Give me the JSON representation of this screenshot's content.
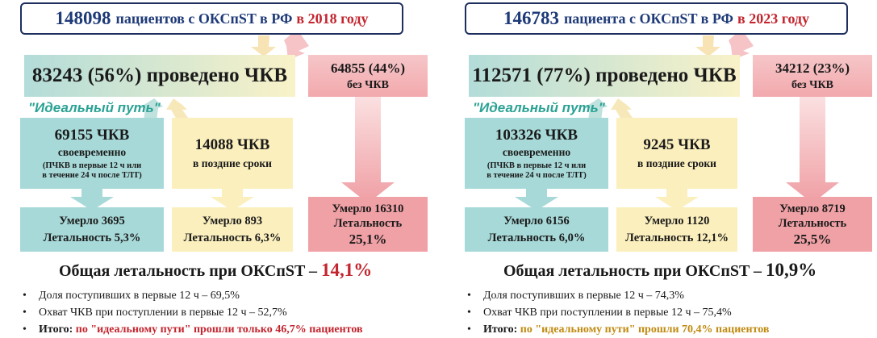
{
  "panels": [
    {
      "title": {
        "count": "148098",
        "text": "пациентов с ОКСпST в РФ",
        "year": "в 2018 году"
      },
      "pci_total": "83243 (56%) проведено ЧКВ",
      "no_pci": {
        "value": "64855 (44%)",
        "label": "без ЧКВ"
      },
      "ideal_label": "\"Идеальный путь\"",
      "timely": {
        "value": "69155 ЧКВ",
        "label": "своевременно",
        "note1": "(ПЧКВ в первые 12 ч или",
        "note2": "в течение 24 ч после ТЛТ)"
      },
      "late": {
        "value": "14088 ЧКВ",
        "label": "в поздние сроки"
      },
      "died_timely": {
        "deaths": "Умерло 3695",
        "lethality": "Летальность 5,3%"
      },
      "died_late": {
        "deaths": "Умерло 893",
        "lethality": "Летальность 6,3%"
      },
      "died_no_pci": {
        "deaths": "Умерло 16310",
        "label": "Летальность",
        "pct": "25,1%"
      },
      "overall": {
        "label": "Общая летальность при ОКСпST –",
        "value": "14,1%"
      },
      "notes": [
        "Доля поступивших в первые 12 ч – 69,5%",
        "Охват ЧКВ при поступлении в первые 12 ч – 52,7%"
      ],
      "total": {
        "prefix": "Итого:",
        "text": "по \"идеальному пути\" прошли только 46,7% пациентов"
      }
    },
    {
      "title": {
        "count": "146783",
        "text": "пациента с ОКСпST в РФ",
        "year": "в 2023 году"
      },
      "pci_total": "112571 (77%) проведено ЧКВ",
      "no_pci": {
        "value": "34212 (23%)",
        "label": "без ЧКВ"
      },
      "ideal_label": "\"Идеальный путь\"",
      "timely": {
        "value": "103326 ЧКВ",
        "label": "своевременно",
        "note1": "(ПЧКВ в первые 12 ч или",
        "note2": "в течение 24 ч после ТЛТ)"
      },
      "late": {
        "value": "9245 ЧКВ",
        "label": "в поздние сроки"
      },
      "died_timely": {
        "deaths": "Умерло 6156",
        "lethality": "Летальность 6,0%"
      },
      "died_late": {
        "deaths": "Умерло 1120",
        "lethality": "Летальность 12,1%"
      },
      "died_no_pci": {
        "deaths": "Умерло 8719",
        "label": "Летальность",
        "pct": "25,5%"
      },
      "overall": {
        "label": "Общая летальность при ОКСпST –",
        "value": "10,9%"
      },
      "notes": [
        "Доля поступивших в первые 12 ч – 74,3%",
        "Охват ЧКВ при поступлении в первые 12 ч – 75,4%"
      ],
      "total": {
        "prefix": "Итого:",
        "text": "по \"идеальному пути\" прошли 70,4% пациентов"
      }
    }
  ],
  "colors": {
    "teal": "#a7d9d8",
    "yellow": "#fbefbd",
    "pink": "#f0a1a6",
    "navy": "#1e3a78",
    "red": "#c3252e",
    "gold": "#c08a10"
  }
}
